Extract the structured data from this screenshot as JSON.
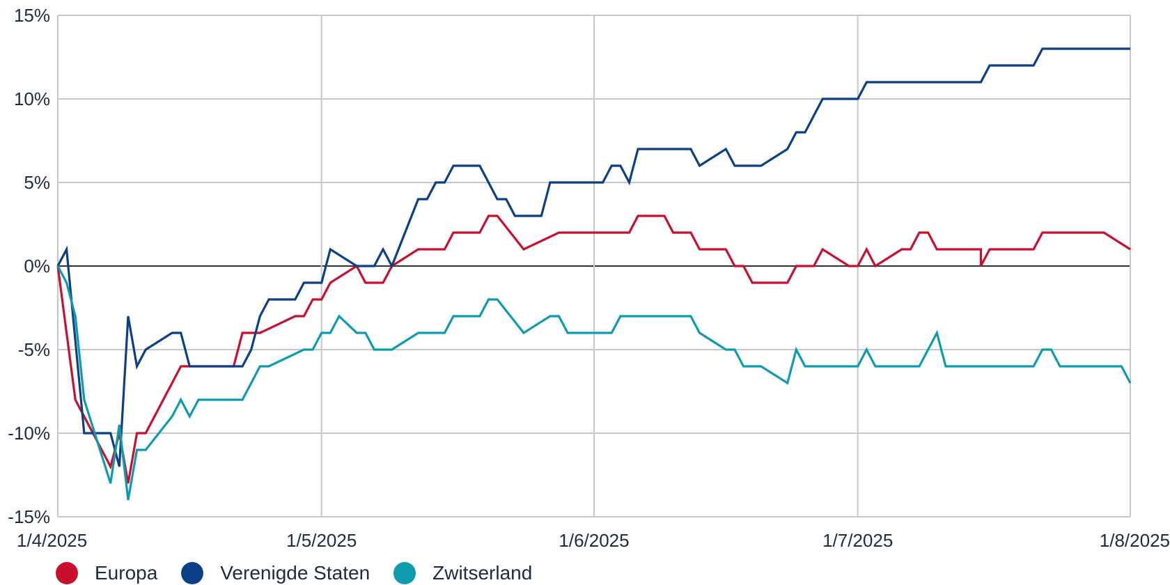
{
  "chart_data": {
    "type": "line",
    "title": "",
    "xlabel": "",
    "ylabel": "",
    "x_tick_labels": [
      "1/4/2025",
      "1/5/2025",
      "1/6/2025",
      "1/7/2025",
      "1/8/2025"
    ],
    "y_tick_labels": [
      "15%",
      "10%",
      "5%",
      "0%",
      "-5%",
      "-10%",
      "-15%"
    ],
    "y_ticks": [
      15,
      10,
      5,
      0,
      -5,
      -10,
      -15
    ],
    "ylim": [
      -15,
      15
    ],
    "xlim": [
      "2025-04-01",
      "2025-08-01"
    ],
    "grid": true,
    "legend_position": "bottom-left",
    "series": [
      {
        "name": "Europa",
        "color": "#c8102e",
        "points": [
          [
            "2025-04-01",
            0
          ],
          [
            "2025-04-03",
            -8
          ],
          [
            "2025-04-07",
            -12
          ],
          [
            "2025-04-08",
            -10
          ],
          [
            "2025-04-09",
            -13
          ],
          [
            "2025-04-10",
            -10
          ],
          [
            "2025-04-11",
            -10
          ],
          [
            "2025-04-15",
            -6
          ],
          [
            "2025-04-21",
            -6
          ],
          [
            "2025-04-22",
            -4
          ],
          [
            "2025-04-24",
            -4
          ],
          [
            "2025-04-28",
            -3
          ],
          [
            "2025-04-29",
            -3
          ],
          [
            "2025-04-30",
            -2
          ],
          [
            "2025-05-01",
            -2
          ],
          [
            "2025-05-02",
            -1
          ],
          [
            "2025-05-05",
            0
          ],
          [
            "2025-05-06",
            -1
          ],
          [
            "2025-05-08",
            -1
          ],
          [
            "2025-05-09",
            0
          ],
          [
            "2025-05-12",
            1
          ],
          [
            "2025-05-15",
            1
          ],
          [
            "2025-05-16",
            2
          ],
          [
            "2025-05-19",
            2
          ],
          [
            "2025-05-20",
            3
          ],
          [
            "2025-05-21",
            3
          ],
          [
            "2025-05-24",
            1
          ],
          [
            "2025-05-28",
            2
          ],
          [
            "2025-06-05",
            2
          ],
          [
            "2025-06-06",
            3
          ],
          [
            "2025-06-09",
            3
          ],
          [
            "2025-06-10",
            2
          ],
          [
            "2025-06-12",
            2
          ],
          [
            "2025-06-13",
            1
          ],
          [
            "2025-06-16",
            1
          ],
          [
            "2025-06-17",
            0
          ],
          [
            "2025-06-18",
            0
          ],
          [
            "2025-06-19",
            -1
          ],
          [
            "2025-06-23",
            -1
          ],
          [
            "2025-06-24",
            0
          ],
          [
            "2025-06-26",
            0
          ],
          [
            "2025-06-27",
            1
          ],
          [
            "2025-06-30",
            0
          ],
          [
            "2025-07-01",
            0
          ],
          [
            "2025-07-02",
            1
          ],
          [
            "2025-07-03",
            0
          ],
          [
            "2025-07-06",
            1
          ],
          [
            "2025-07-07",
            1
          ],
          [
            "2025-07-08",
            2
          ],
          [
            "2025-07-09",
            2
          ],
          [
            "2025-07-10",
            1
          ],
          [
            "2025-07-15",
            1
          ],
          [
            "2025-07-15",
            0
          ],
          [
            "2025-07-16",
            1
          ],
          [
            "2025-07-21",
            1
          ],
          [
            "2025-07-22",
            2
          ],
          [
            "2025-07-29",
            2
          ],
          [
            "2025-08-01",
            1
          ]
        ]
      },
      {
        "name": "Verenigde Staten",
        "color": "#0b3f86",
        "points": [
          [
            "2025-04-01",
            0
          ],
          [
            "2025-04-02",
            1
          ],
          [
            "2025-04-04",
            -10
          ],
          [
            "2025-04-07",
            -10
          ],
          [
            "2025-04-08",
            -12
          ],
          [
            "2025-04-09",
            -3
          ],
          [
            "2025-04-10",
            -6
          ],
          [
            "2025-04-11",
            -5
          ],
          [
            "2025-04-14",
            -4
          ],
          [
            "2025-04-15",
            -4
          ],
          [
            "2025-04-16",
            -6
          ],
          [
            "2025-04-22",
            -6
          ],
          [
            "2025-04-23",
            -5
          ],
          [
            "2025-04-24",
            -3
          ],
          [
            "2025-04-25",
            -2
          ],
          [
            "2025-04-28",
            -2
          ],
          [
            "2025-04-29",
            -1
          ],
          [
            "2025-05-01",
            -1
          ],
          [
            "2025-05-02",
            1
          ],
          [
            "2025-05-05",
            0
          ],
          [
            "2025-05-07",
            0
          ],
          [
            "2025-05-08",
            1
          ],
          [
            "2025-05-09",
            0
          ],
          [
            "2025-05-12",
            4
          ],
          [
            "2025-05-13",
            4
          ],
          [
            "2025-05-14",
            5
          ],
          [
            "2025-05-15",
            5
          ],
          [
            "2025-05-16",
            6
          ],
          [
            "2025-05-19",
            6
          ],
          [
            "2025-05-21",
            4
          ],
          [
            "2025-05-22",
            4
          ],
          [
            "2025-05-23",
            3
          ],
          [
            "2025-05-26",
            3
          ],
          [
            "2025-05-27",
            5
          ],
          [
            "2025-05-28",
            5
          ],
          [
            "2025-06-02",
            5
          ],
          [
            "2025-06-03",
            6
          ],
          [
            "2025-06-04",
            6
          ],
          [
            "2025-06-05",
            5
          ],
          [
            "2025-06-06",
            7
          ],
          [
            "2025-06-12",
            7
          ],
          [
            "2025-06-13",
            6
          ],
          [
            "2025-06-16",
            7
          ],
          [
            "2025-06-17",
            6
          ],
          [
            "2025-06-20",
            6
          ],
          [
            "2025-06-23",
            7
          ],
          [
            "2025-06-24",
            8
          ],
          [
            "2025-06-25",
            8
          ],
          [
            "2025-06-27",
            10
          ],
          [
            "2025-07-01",
            10
          ],
          [
            "2025-07-02",
            11
          ],
          [
            "2025-07-15",
            11
          ],
          [
            "2025-07-16",
            12
          ],
          [
            "2025-07-21",
            12
          ],
          [
            "2025-07-22",
            13
          ],
          [
            "2025-08-01",
            13
          ]
        ]
      },
      {
        "name": "Zwitserland",
        "color": "#0e9bb0",
        "points": [
          [
            "2025-04-01",
            0
          ],
          [
            "2025-04-02",
            -1
          ],
          [
            "2025-04-03",
            -3
          ],
          [
            "2025-04-04",
            -8
          ],
          [
            "2025-04-07",
            -13
          ],
          [
            "2025-04-08",
            -9.5
          ],
          [
            "2025-04-09",
            -14
          ],
          [
            "2025-04-10",
            -11
          ],
          [
            "2025-04-11",
            -11
          ],
          [
            "2025-04-14",
            -9
          ],
          [
            "2025-04-15",
            -8
          ],
          [
            "2025-04-16",
            -9
          ],
          [
            "2025-04-17",
            -8
          ],
          [
            "2025-04-22",
            -8
          ],
          [
            "2025-04-24",
            -6
          ],
          [
            "2025-04-25",
            -6
          ],
          [
            "2025-04-29",
            -5
          ],
          [
            "2025-04-30",
            -5
          ],
          [
            "2025-05-01",
            -4
          ],
          [
            "2025-05-02",
            -4
          ],
          [
            "2025-05-03",
            -3
          ],
          [
            "2025-05-05",
            -4
          ],
          [
            "2025-05-06",
            -4
          ],
          [
            "2025-05-07",
            -5
          ],
          [
            "2025-05-09",
            -5
          ],
          [
            "2025-05-12",
            -4
          ],
          [
            "2025-05-15",
            -4
          ],
          [
            "2025-05-16",
            -3
          ],
          [
            "2025-05-19",
            -3
          ],
          [
            "2025-05-20",
            -2
          ],
          [
            "2025-05-21",
            -2
          ],
          [
            "2025-05-24",
            -4
          ],
          [
            "2025-05-27",
            -3
          ],
          [
            "2025-05-28",
            -3
          ],
          [
            "2025-05-29",
            -4
          ],
          [
            "2025-06-03",
            -4
          ],
          [
            "2025-06-04",
            -3
          ],
          [
            "2025-06-12",
            -3
          ],
          [
            "2025-06-13",
            -4
          ],
          [
            "2025-06-16",
            -5
          ],
          [
            "2025-06-17",
            -5
          ],
          [
            "2025-06-18",
            -6
          ],
          [
            "2025-06-20",
            -6
          ],
          [
            "2025-06-23",
            -7
          ],
          [
            "2025-06-24",
            -5
          ],
          [
            "2025-06-25",
            -6
          ],
          [
            "2025-07-01",
            -6
          ],
          [
            "2025-07-02",
            -5
          ],
          [
            "2025-07-03",
            -6
          ],
          [
            "2025-07-08",
            -6
          ],
          [
            "2025-07-10",
            -4
          ],
          [
            "2025-07-11",
            -6
          ],
          [
            "2025-07-21",
            -6
          ],
          [
            "2025-07-22",
            -5
          ],
          [
            "2025-07-23",
            -5
          ],
          [
            "2025-07-24",
            -6
          ],
          [
            "2025-07-31",
            -6
          ],
          [
            "2025-08-01",
            -7
          ]
        ]
      }
    ]
  }
}
